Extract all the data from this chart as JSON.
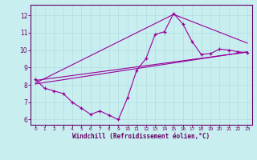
{
  "title": "",
  "xlabel": "Windchill (Refroidissement éolien,°C)",
  "ylabel": "",
  "bg_color": "#c8eef0",
  "line_color": "#990099",
  "xlim": [
    -0.5,
    23.5
  ],
  "ylim": [
    5.7,
    12.6
  ],
  "yticks": [
    6,
    7,
    8,
    9,
    10,
    11,
    12
  ],
  "xticks": [
    0,
    1,
    2,
    3,
    4,
    5,
    6,
    7,
    8,
    9,
    10,
    11,
    12,
    13,
    14,
    15,
    16,
    17,
    18,
    19,
    20,
    21,
    22,
    23
  ],
  "series1_x": [
    0,
    1,
    2,
    3,
    4,
    5,
    6,
    7,
    8,
    9,
    10,
    11,
    12,
    13,
    14,
    15,
    16,
    17,
    18,
    19,
    20,
    21,
    22,
    23
  ],
  "series1_y": [
    8.3,
    7.8,
    7.65,
    7.5,
    7.0,
    6.65,
    6.3,
    6.5,
    6.25,
    6.0,
    7.25,
    8.85,
    9.5,
    10.9,
    11.05,
    12.1,
    11.5,
    10.5,
    9.75,
    9.8,
    10.05,
    10.0,
    9.9,
    9.85
  ],
  "series2_x": [
    0,
    23
  ],
  "series2_y": [
    8.05,
    9.9
  ],
  "series3_x": [
    0,
    15,
    23
  ],
  "series3_y": [
    8.1,
    12.05,
    10.4
  ],
  "series4_x": [
    0,
    23
  ],
  "series4_y": [
    8.25,
    9.88
  ],
  "grid_color": "#b0dde0",
  "font_color": "#660066",
  "spine_color": "#660066"
}
